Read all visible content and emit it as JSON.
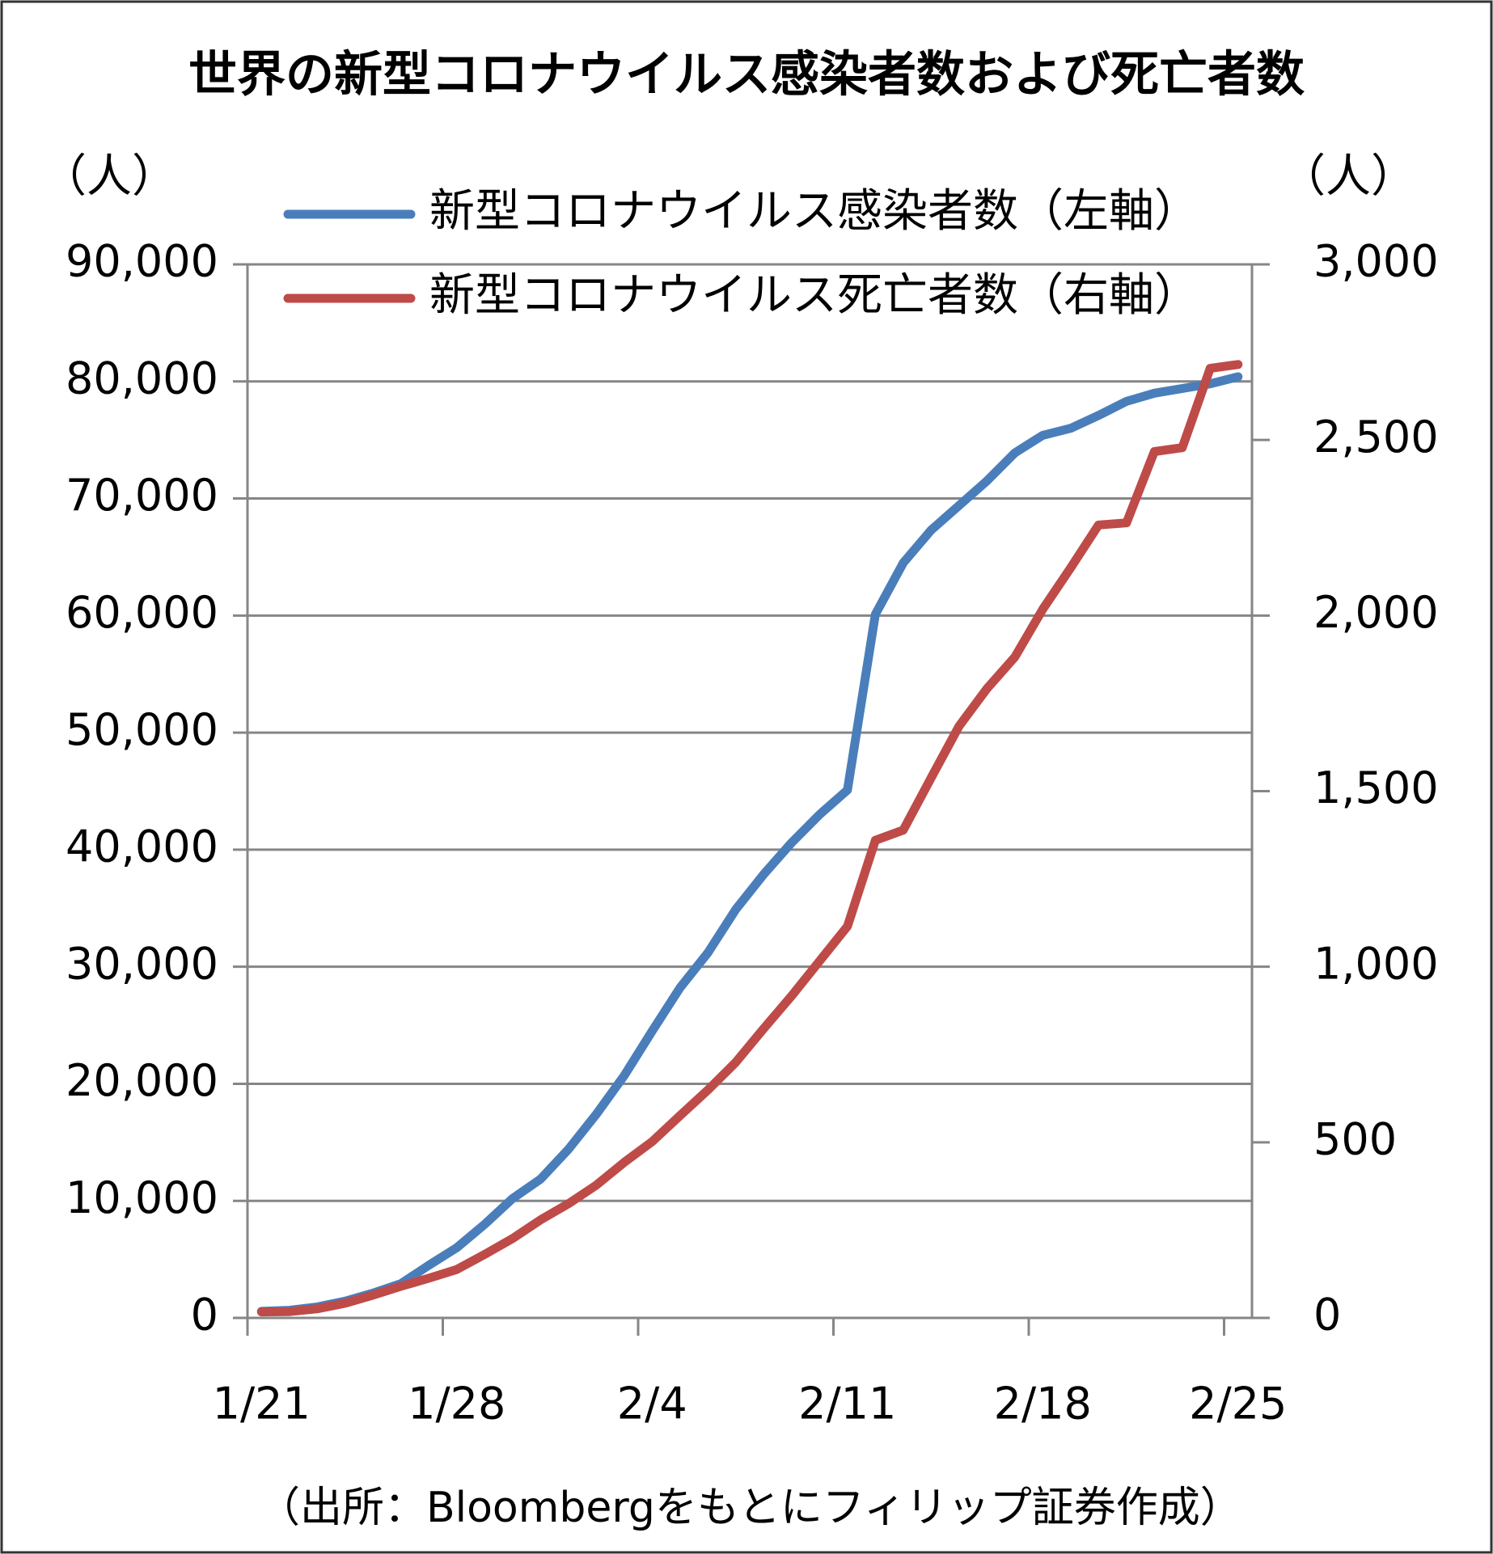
{
  "chart_data": {
    "type": "line",
    "title": "世界の新型コロナウイルス感染者数および死亡者数",
    "y_label": "（人）",
    "y2_label": "（人）",
    "source": "（出所：Bloombergをもとにフィリップ証券作成）",
    "categories": [
      "1/21",
      null,
      null,
      null,
      null,
      null,
      null,
      "1/28",
      null,
      null,
      null,
      null,
      null,
      null,
      "2/4",
      null,
      null,
      null,
      null,
      null,
      null,
      "2/11",
      null,
      null,
      null,
      null,
      null,
      null,
      "2/18",
      null,
      null,
      null,
      null,
      null,
      null,
      "2/25"
    ],
    "series": [
      {
        "name": "新型コロナウイルス感染者数（左軸）",
        "color": "#4a7ebb",
        "axis": "y",
        "values": [
          560,
          650,
          940,
          1430,
          2120,
          2930,
          4500,
          6000,
          8000,
          10200,
          11850,
          14400,
          17400,
          20700,
          24500,
          28200,
          31200,
          34900,
          37900,
          40600,
          43000,
          45100,
          60100,
          64500,
          67300,
          69400,
          71500,
          73900,
          75400,
          76000,
          77100,
          78300,
          79000,
          79400,
          79800,
          80400
        ]
      },
      {
        "name": "新型コロナウイルス死亡者数（右軸）",
        "color": "#be4b48",
        "axis": "y2",
        "values": [
          17,
          18,
          26,
          42,
          65,
          90,
          113,
          138,
          181,
          226,
          279,
          325,
          378,
          443,
          502,
          576,
          649,
          728,
          824,
          917,
          1016,
          1115,
          1360,
          1389,
          1538,
          1685,
          1792,
          1882,
          2018,
          2136,
          2258,
          2264,
          2467,
          2478,
          2704,
          2715
        ]
      }
    ],
    "ylim": [
      0,
      90000
    ],
    "yticks": [
      0,
      {
        "value": 10000,
        "label": "10,000"
      },
      {
        "value": 20000,
        "label": "20,000"
      },
      {
        "value": 30000,
        "label": "30,000"
      },
      {
        "value": 40000,
        "label": "40,000"
      },
      {
        "value": 50000,
        "label": "50,000"
      },
      {
        "value": 60000,
        "label": "60,000"
      },
      {
        "value": 70000,
        "label": "70,000"
      },
      {
        "value": 80000,
        "label": "80,000"
      },
      {
        "value": 90000,
        "label": "90,000"
      }
    ],
    "y2lim": [
      0,
      3000
    ],
    "y2ticks": [
      0,
      500,
      {
        "value": 1000,
        "label": "1,000"
      },
      {
        "value": 1500,
        "label": "1,500"
      },
      {
        "value": 2000,
        "label": "2,000"
      },
      {
        "value": 2500,
        "label": "2,500"
      },
      {
        "value": 3000,
        "label": "3,000"
      }
    ],
    "grid": true
  }
}
